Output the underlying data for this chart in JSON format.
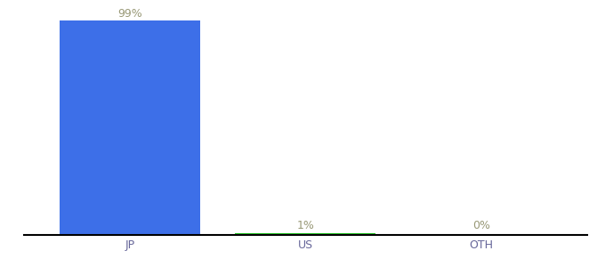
{
  "categories": [
    "JP",
    "US",
    "OTH"
  ],
  "values": [
    99,
    1,
    0
  ],
  "labels": [
    "99%",
    "1%",
    "0%"
  ],
  "bar_colors": [
    "#3d6fe8",
    "#22c422",
    "#3d6fe8"
  ],
  "ylim": [
    0,
    100
  ],
  "background_color": "#ffffff",
  "label_color": "#999977",
  "tick_color": "#666699",
  "bar_width": 0.8,
  "figsize": [
    6.8,
    3.0
  ],
  "dpi": 100,
  "x_positions": [
    1,
    2,
    3
  ]
}
